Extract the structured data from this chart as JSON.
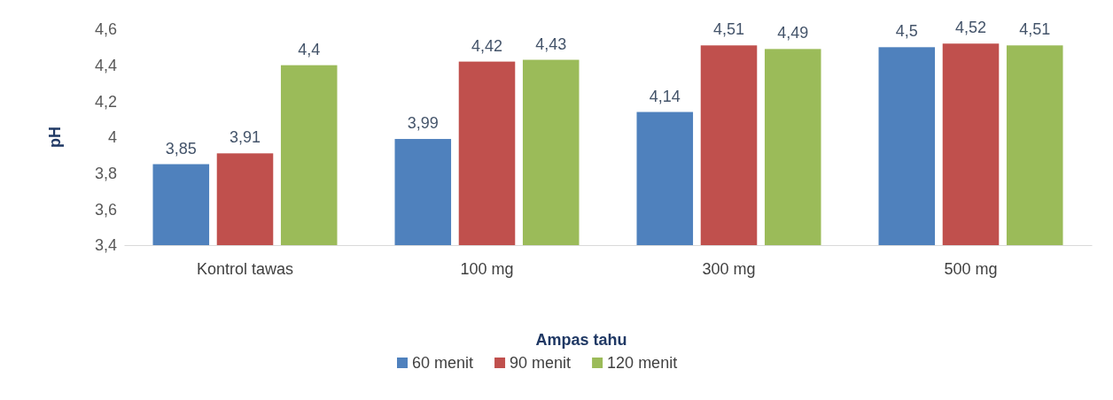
{
  "chart_data": {
    "type": "bar",
    "xlabel": "Ampas tahu",
    "ylabel": "pH",
    "categories": [
      "Kontrol tawas",
      "100 mg",
      "300 mg",
      "500 mg"
    ],
    "series": [
      {
        "name": "60 menit",
        "color": "#4f81bd",
        "values": [
          3.85,
          3.99,
          4.14,
          4.5
        ],
        "value_labels": [
          "3,85",
          "3,99",
          "4,14",
          "4,5"
        ]
      },
      {
        "name": "90 menit",
        "color": "#c0504d",
        "values": [
          3.91,
          4.42,
          4.51,
          4.52
        ],
        "value_labels": [
          "3,91",
          "4,42",
          "4,51",
          "4,52"
        ]
      },
      {
        "name": "120 menit",
        "color": "#9bbb59",
        "values": [
          4.4,
          4.43,
          4.49,
          4.51
        ],
        "value_labels": [
          "4,4",
          "4,43",
          "4,49",
          "4,51"
        ]
      }
    ],
    "ylim": [
      3.4,
      4.6
    ],
    "yticks": [
      {
        "value": 3.4,
        "label": "3,4"
      },
      {
        "value": 3.6,
        "label": "3,6"
      },
      {
        "value": 3.8,
        "label": "3,8"
      },
      4,
      {
        "value": 4.2,
        "label": "4,2"
      },
      {
        "value": 4.4,
        "label": "4,4"
      },
      {
        "value": 4.6,
        "label": "4,6"
      }
    ],
    "grid": false,
    "legend": "bottom"
  }
}
